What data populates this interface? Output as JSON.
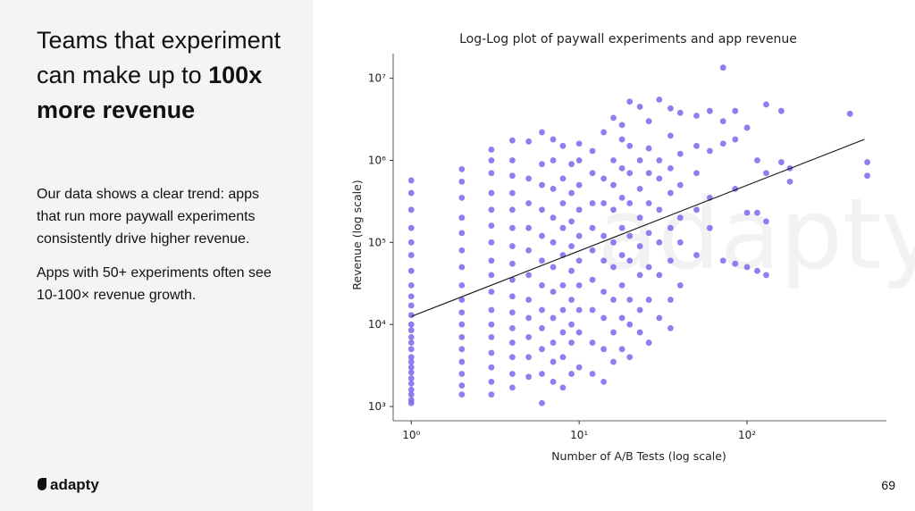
{
  "slide": {
    "title_regular": "Teams that experiment can make up to",
    "title_bold": "100x more revenue",
    "paragraphs": [
      "Our data shows a clear trend: apps that run more paywall experiments consistently drive higher revenue.",
      "Apps with 50+ experiments often see 10-100× revenue growth."
    ],
    "logo": "adapty",
    "page_number": "69"
  },
  "chart_data": {
    "type": "scatter",
    "title": "Log-Log plot of paywall experiments and app revenue",
    "x_label": "Number of A/B Tests (log scale)",
    "y_label": "Revenue (log scale)",
    "xscale": "log",
    "yscale": "log",
    "xlim": [
      0.78,
      676
    ],
    "ylim": [
      670,
      20000000
    ],
    "xticks": [
      {
        "value": 1,
        "label": "10⁰"
      },
      {
        "value": 10,
        "label": "10¹"
      },
      {
        "value": 100,
        "label": "10²"
      }
    ],
    "yticks": [
      {
        "value": 1000,
        "label": "10³"
      },
      {
        "value": 10000,
        "label": "10⁴"
      },
      {
        "value": 100000,
        "label": "10⁵"
      },
      {
        "value": 1000000,
        "label": "10⁶"
      },
      {
        "value": 10000000,
        "label": "10⁷"
      }
    ],
    "grid": false,
    "series": [
      {
        "color": "#7a68ef",
        "x": [
          1,
          1,
          1,
          1,
          1,
          1,
          1,
          1,
          1,
          1,
          1,
          1,
          1,
          1,
          1,
          1,
          1,
          1,
          1,
          1,
          1,
          1,
          1,
          1,
          1,
          1,
          2,
          2,
          2,
          2,
          2,
          2,
          2,
          2,
          2,
          2,
          2,
          2,
          2,
          2,
          2,
          2,
          2,
          3,
          3,
          3,
          3,
          3,
          3,
          3,
          3,
          3,
          3,
          3,
          3,
          3,
          3,
          3,
          3,
          3,
          4,
          4,
          4,
          4,
          4,
          4,
          4,
          4,
          4,
          4,
          4,
          4,
          4,
          4,
          4,
          4,
          5,
          5,
          5,
          5,
          5,
          5,
          5,
          5,
          5,
          5,
          5,
          6,
          6,
          6,
          6,
          6,
          6,
          6,
          6,
          6,
          6,
          6,
          6,
          7,
          7,
          7,
          7,
          7,
          7,
          7,
          7,
          7,
          7,
          7,
          8,
          8,
          8,
          8,
          8,
          8,
          8,
          8,
          8,
          8,
          9,
          9,
          9,
          9,
          9,
          9,
          9,
          9,
          9,
          10,
          10,
          10,
          10,
          10,
          10,
          10,
          10,
          10,
          10,
          12,
          12,
          12,
          12,
          12,
          12,
          12,
          12,
          12,
          14,
          14,
          14,
          14,
          14,
          14,
          14,
          14,
          14,
          16,
          16,
          16,
          16,
          16,
          16,
          16,
          16,
          16,
          18,
          18,
          18,
          18,
          18,
          18,
          18,
          18,
          18,
          20,
          20,
          20,
          20,
          20,
          20,
          20,
          20,
          20,
          23,
          23,
          23,
          23,
          23,
          23,
          23,
          23,
          26,
          26,
          26,
          26,
          26,
          26,
          26,
          26,
          30,
          30,
          30,
          30,
          30,
          30,
          30,
          35,
          35,
          35,
          35,
          35,
          35,
          35,
          35,
          40,
          40,
          40,
          40,
          40,
          40,
          50,
          50,
          50,
          50,
          50,
          60,
          60,
          60,
          60,
          72,
          72,
          72,
          72,
          85,
          85,
          85,
          85,
          100,
          100,
          100,
          115,
          115,
          115,
          130,
          130,
          130,
          130,
          160,
          160,
          180,
          180,
          410,
          520,
          520
        ],
        "values": [
          1100,
          1200,
          1400,
          1600,
          1900,
          2200,
          2600,
          3000,
          3500,
          4000,
          5000,
          6000,
          7000,
          8500,
          10000,
          13000,
          17000,
          22000,
          30000,
          45000,
          70000,
          100000,
          150000,
          250000,
          400000,
          570000,
          1400,
          1800,
          2500,
          3500,
          5000,
          7000,
          10000,
          14000,
          20000,
          30000,
          50000,
          80000,
          130000,
          200000,
          350000,
          550000,
          780000,
          1400,
          2000,
          3000,
          4500,
          7000,
          10000,
          15000,
          25000,
          40000,
          60000,
          100000,
          160000,
          250000,
          400000,
          700000,
          1000000,
          1350000,
          1700,
          2500,
          4000,
          6000,
          9000,
          14000,
          22000,
          35000,
          55000,
          90000,
          150000,
          250000,
          400000,
          650000,
          1000000,
          1750000,
          2300,
          4000,
          7000,
          12000,
          20000,
          40000,
          80000,
          150000,
          300000,
          600000,
          1700000,
          1100,
          2500,
          5000,
          9000,
          15000,
          30000,
          60000,
          120000,
          250000,
          500000,
          900000,
          2200000,
          2000,
          3500,
          6000,
          12000,
          25000,
          50000,
          100000,
          200000,
          450000,
          1000000,
          1800000,
          1700,
          4000,
          8000,
          15000,
          30000,
          70000,
          150000,
          300000,
          600000,
          1500000,
          2500,
          6000,
          10000,
          20000,
          45000,
          90000,
          180000,
          400000,
          900000,
          3000,
          8000,
          15000,
          30000,
          60000,
          120000,
          250000,
          500000,
          1000000,
          1600000,
          2500,
          6000,
          15000,
          35000,
          80000,
          150000,
          300000,
          700000,
          1300000,
          2000,
          5000,
          12000,
          25000,
          60000,
          120000,
          300000,
          600000,
          2200000,
          3500,
          8000,
          20000,
          50000,
          100000,
          250000,
          500000,
          1000000,
          3300000,
          5000,
          12000,
          30000,
          70000,
          150000,
          350000,
          800000,
          1800000,
          2700000,
          4000,
          10000,
          20000,
          60000,
          120000,
          300000,
          700000,
          1500000,
          5200000,
          8000,
          15000,
          40000,
          90000,
          200000,
          450000,
          1000000,
          4500000,
          6000,
          20000,
          50000,
          130000,
          300000,
          700000,
          1400000,
          3000000,
          12000,
          40000,
          100000,
          250000,
          600000,
          1000000,
          5500000,
          9000,
          20000,
          60000,
          150000,
          400000,
          800000,
          2000000,
          4300000,
          30000,
          100000,
          200000,
          500000,
          1200000,
          3800000,
          70000,
          250000,
          700000,
          1500000,
          3500000,
          150000,
          350000,
          1300000,
          4000000,
          13500000,
          60000,
          1600000,
          3000000,
          450000,
          55000,
          4000000,
          1800000,
          230000,
          50000,
          2500000,
          1000000,
          45000,
          230000,
          4800000,
          40000,
          180000,
          700000,
          950000,
          4000000,
          550000,
          800000,
          3700000,
          650000,
          950000
        ]
      }
    ],
    "trend": {
      "color": "#111111",
      "x": [
        1,
        500
      ],
      "values": [
        12500,
        1800000
      ]
    }
  }
}
